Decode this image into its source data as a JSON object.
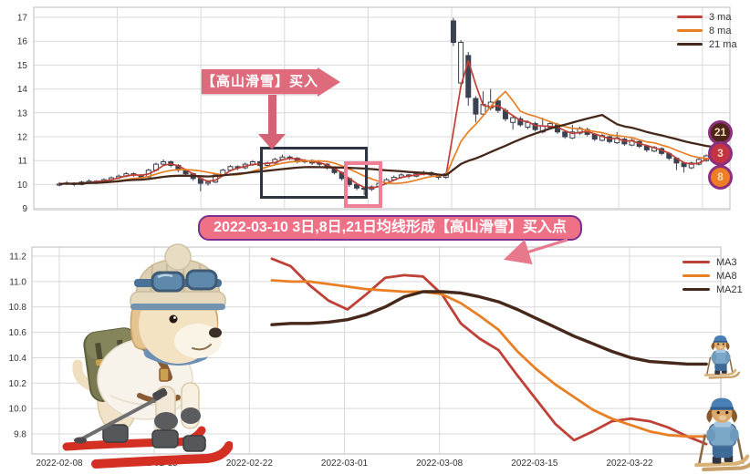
{
  "annotation": {
    "ribbon_text": "【高山滑雪】买入点"
  },
  "banner": {
    "text": "2022-03-10 3日,8日,21日均线形成【高山滑雪】买入点"
  },
  "badges": [
    {
      "label": "21",
      "bg": "#4d2519"
    },
    {
      "label": "3",
      "bg": "#c23343"
    },
    {
      "label": "8",
      "bg": "#ee7d26"
    }
  ],
  "colors": {
    "ma3": "#bf4036",
    "ma8": "#e87f25",
    "ma21": "#45281a",
    "candle_down": "#3a4150",
    "candle_up_fill": "#ffffff",
    "grid": "#d9d9d9",
    "frame": "#c9c9c9",
    "axis_text": "#333333",
    "pink_annotation": "#dd6b7c",
    "banner_bg": "#ee7186",
    "banner_border": "#7b2f8f",
    "highlight_box_dark": "#2e3440",
    "highlight_box_pink": "#ef7f96",
    "badge_ring": "#8d2f7d",
    "badge_text": "#f3ddba",
    "arrow_pink": "#e8798d"
  },
  "chart_data": [
    {
      "type": "candlestick",
      "title": "",
      "ylim": [
        9,
        17.3
      ],
      "yticks": [
        9,
        10,
        11,
        12,
        13,
        14,
        15,
        16,
        17
      ],
      "grid": true,
      "legend_position": "upper right",
      "legend": [
        {
          "name": "3 ma",
          "color": "#bf4036"
        },
        {
          "name": "8 ma",
          "color": "#e87f25"
        },
        {
          "name": "21 ma",
          "color": "#45281a"
        }
      ],
      "ma_windows": [
        3,
        8,
        21
      ],
      "candles": [
        [
          10.0,
          10.1,
          9.92,
          10.02
        ],
        [
          10.02,
          10.14,
          9.98,
          10.06
        ],
        [
          10.06,
          10.1,
          9.93,
          10.0
        ],
        [
          10.0,
          10.16,
          9.96,
          10.1
        ],
        [
          10.1,
          10.22,
          10.04,
          10.14
        ],
        [
          10.14,
          10.18,
          10.02,
          10.1
        ],
        [
          10.1,
          10.26,
          10.06,
          10.2
        ],
        [
          10.2,
          10.34,
          10.14,
          10.28
        ],
        [
          10.28,
          10.42,
          10.22,
          10.35
        ],
        [
          10.35,
          10.52,
          10.3,
          10.45
        ],
        [
          10.45,
          10.5,
          10.32,
          10.4
        ],
        [
          10.4,
          10.44,
          10.24,
          10.32
        ],
        [
          10.32,
          10.66,
          10.28,
          10.6
        ],
        [
          10.6,
          10.92,
          10.55,
          10.85
        ],
        [
          10.85,
          11.05,
          10.78,
          10.95
        ],
        [
          10.95,
          11.0,
          10.72,
          10.8
        ],
        [
          10.8,
          10.86,
          10.52,
          10.6
        ],
        [
          10.6,
          10.66,
          10.38,
          10.45
        ],
        [
          10.45,
          10.5,
          10.16,
          10.25
        ],
        [
          10.25,
          10.3,
          9.72,
          10.05
        ],
        [
          10.05,
          10.18,
          9.95,
          10.1
        ],
        [
          10.1,
          10.46,
          10.05,
          10.4
        ],
        [
          10.4,
          10.66,
          10.34,
          10.6
        ],
        [
          10.6,
          10.82,
          10.54,
          10.75
        ],
        [
          10.75,
          10.8,
          10.6,
          10.7
        ],
        [
          10.7,
          10.92,
          10.64,
          10.85
        ],
        [
          10.85,
          11.02,
          10.78,
          10.95
        ],
        [
          10.95,
          11.0,
          10.72,
          10.8
        ],
        [
          10.8,
          10.96,
          10.74,
          10.9
        ],
        [
          10.9,
          11.12,
          10.84,
          11.05
        ],
        [
          11.05,
          11.25,
          11.0,
          11.15
        ],
        [
          11.15,
          11.22,
          11.02,
          11.1
        ],
        [
          11.1,
          11.15,
          10.88,
          10.95
        ],
        [
          10.95,
          11.06,
          10.88,
          11.0
        ],
        [
          11.0,
          11.05,
          10.82,
          10.9
        ],
        [
          10.9,
          10.96,
          10.76,
          10.85
        ],
        [
          10.85,
          10.9,
          10.62,
          10.7
        ],
        [
          10.7,
          10.75,
          10.42,
          10.5
        ],
        [
          10.5,
          10.55,
          10.16,
          10.25
        ],
        [
          10.25,
          10.3,
          9.9,
          10.0
        ],
        [
          10.0,
          10.05,
          9.76,
          9.85
        ],
        [
          9.85,
          9.92,
          9.55,
          9.8
        ],
        [
          9.8,
          9.96,
          9.72,
          9.9
        ],
        [
          9.9,
          10.12,
          9.85,
          10.05
        ],
        [
          10.05,
          10.27,
          10.0,
          10.2
        ],
        [
          10.2,
          10.38,
          10.14,
          10.3
        ],
        [
          10.3,
          10.48,
          10.24,
          10.4
        ],
        [
          10.4,
          10.44,
          10.26,
          10.35
        ],
        [
          10.35,
          10.52,
          10.3,
          10.45
        ],
        [
          10.45,
          10.58,
          10.38,
          10.5
        ],
        [
          10.5,
          10.54,
          10.32,
          10.4
        ],
        [
          10.4,
          10.45,
          10.2,
          10.3
        ],
        [
          10.3,
          10.52,
          10.24,
          10.45
        ],
        [
          16.85,
          16.97,
          15.8,
          15.95
        ],
        [
          14.25,
          16.05,
          14.1,
          15.95
        ],
        [
          15.4,
          15.55,
          13.3,
          13.65
        ],
        [
          13.6,
          13.7,
          12.6,
          12.95
        ],
        [
          12.95,
          13.9,
          12.85,
          13.35
        ],
        [
          13.2,
          14.0,
          13.1,
          13.45
        ],
        [
          13.5,
          13.58,
          13.0,
          13.1
        ],
        [
          13.1,
          13.2,
          12.65,
          12.75
        ],
        [
          12.6,
          12.92,
          12.3,
          12.8
        ],
        [
          12.75,
          12.85,
          12.42,
          12.5
        ],
        [
          12.4,
          12.68,
          12.32,
          12.6
        ],
        [
          12.55,
          12.62,
          12.22,
          12.3
        ],
        [
          12.2,
          12.8,
          12.14,
          12.45
        ],
        [
          12.4,
          12.62,
          12.32,
          12.55
        ],
        [
          12.5,
          12.58,
          12.12,
          12.2
        ],
        [
          12.2,
          12.28,
          11.92,
          12.0
        ],
        [
          11.95,
          12.5,
          11.9,
          12.2
        ],
        [
          12.15,
          12.42,
          12.08,
          12.35
        ],
        [
          12.3,
          12.38,
          12.02,
          12.1
        ],
        [
          12.1,
          12.16,
          11.82,
          11.9
        ],
        [
          11.85,
          12.12,
          11.8,
          12.05
        ],
        [
          12.0,
          12.06,
          11.72,
          11.8
        ],
        [
          11.75,
          12.2,
          11.7,
          11.95
        ],
        [
          11.9,
          11.96,
          11.62,
          11.7
        ],
        [
          11.65,
          11.92,
          11.6,
          11.85
        ],
        [
          11.8,
          11.86,
          11.52,
          11.6
        ],
        [
          11.6,
          11.66,
          11.36,
          11.45
        ],
        [
          11.4,
          11.62,
          11.35,
          11.55
        ],
        [
          11.5,
          11.56,
          11.22,
          11.3
        ],
        [
          11.3,
          11.36,
          11.02,
          11.1
        ],
        [
          11.1,
          11.15,
          10.6,
          10.9
        ],
        [
          10.9,
          10.95,
          10.5,
          10.75
        ],
        [
          10.7,
          10.96,
          10.64,
          10.9
        ],
        [
          10.85,
          11.12,
          10.8,
          11.05
        ],
        [
          11.0,
          11.26,
          10.95,
          11.2
        ],
        [
          11.15,
          11.38,
          11.1,
          11.3
        ]
      ]
    },
    {
      "type": "line",
      "title": "",
      "ylim": [
        9.64,
        11.27
      ],
      "yticks": [
        9.8,
        10.0,
        10.2,
        10.4,
        10.6,
        10.8,
        11.0,
        11.2
      ],
      "grid": true,
      "legend_position": "upper right",
      "xticklabels": [
        "2022-02-08",
        "2022-02-15",
        "2022-02-22",
        "2022-03-01",
        "2022-03-08",
        "2022-03-15",
        "2022-03-22"
      ],
      "x_dates": [
        "2022-02-23",
        "2022-02-24",
        "2022-02-25",
        "2022-02-28",
        "2022-03-01",
        "2022-03-02",
        "2022-03-03",
        "2022-03-04",
        "2022-03-07",
        "2022-03-08",
        "2022-03-09",
        "2022-03-10",
        "2022-03-11",
        "2022-03-14",
        "2022-03-15",
        "2022-03-16",
        "2022-03-17",
        "2022-03-18",
        "2022-03-21",
        "2022-03-22",
        "2022-03-23",
        "2022-03-24",
        "2022-03-25",
        "2022-03-28"
      ],
      "series": [
        {
          "name": "MA3",
          "color": "#bf4036",
          "values": [
            11.18,
            11.12,
            10.97,
            10.85,
            10.78,
            10.9,
            11.03,
            11.05,
            11.04,
            10.9,
            10.67,
            10.55,
            10.46,
            10.26,
            10.07,
            9.88,
            9.75,
            9.82,
            9.9,
            9.92,
            9.9,
            9.85,
            9.78,
            9.72
          ]
        },
        {
          "name": "MA8",
          "color": "#e87f25",
          "values": [
            11.01,
            11.0,
            11.0,
            10.98,
            10.96,
            10.94,
            10.93,
            10.92,
            10.92,
            10.9,
            10.83,
            10.73,
            10.62,
            10.45,
            10.31,
            10.19,
            10.09,
            9.99,
            9.92,
            9.87,
            9.82,
            9.79,
            9.78,
            9.78
          ]
        },
        {
          "name": "MA21",
          "color": "#45281a",
          "values": [
            10.66,
            10.67,
            10.67,
            10.68,
            10.7,
            10.74,
            10.8,
            10.88,
            10.92,
            10.92,
            10.91,
            10.88,
            10.84,
            10.78,
            10.71,
            10.64,
            10.57,
            10.51,
            10.45,
            10.4,
            10.37,
            10.36,
            10.35,
            10.35
          ]
        }
      ]
    }
  ]
}
